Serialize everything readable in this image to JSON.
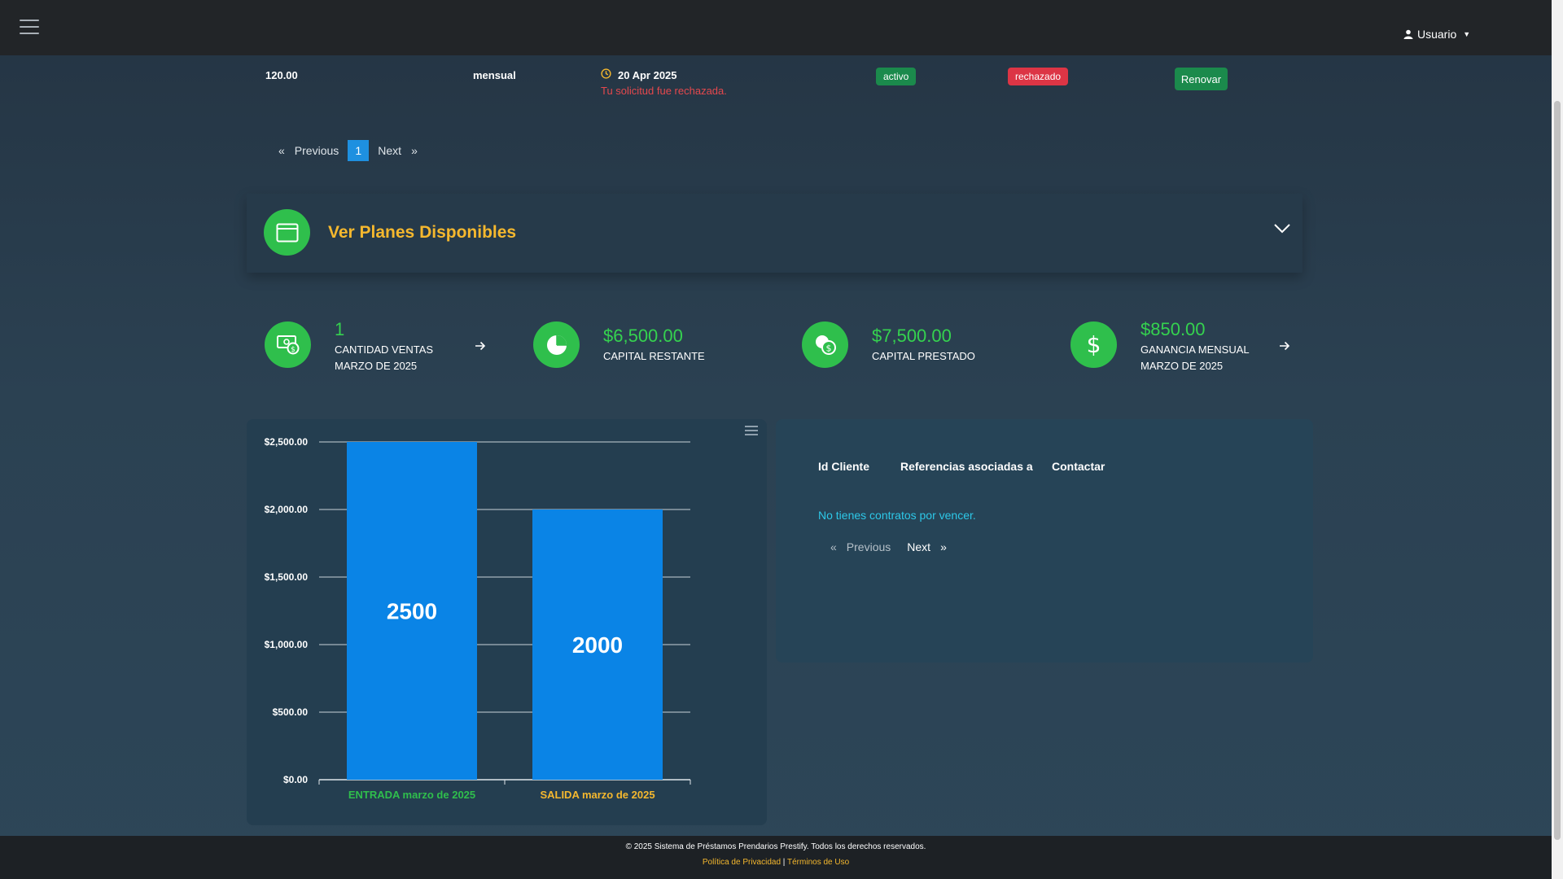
{
  "header": {
    "user_label": "Usuario"
  },
  "last_row": {
    "amount": "120.00",
    "frequency": "mensual",
    "date": "20 Apr 2025",
    "message": "Tu solicitud fue rechazada.",
    "status": "activo",
    "request_status": "rechazado",
    "action": "Renovar"
  },
  "pagination_top": {
    "previous": "Previous",
    "current": "1",
    "next": "Next",
    "prev_glyph": "«",
    "next_glyph": "»"
  },
  "plans": {
    "title": "Ver Planes Disponibles"
  },
  "stats": [
    {
      "value": "1",
      "label": "CANTIDAD VENTAS MARZO DE 2025",
      "icon": "money-icon"
    },
    {
      "value": "$6,500.00",
      "label": "CAPITAL RESTANTE",
      "icon": "pie-chart-icon"
    },
    {
      "value": "$7,500.00",
      "label": "CAPITAL PRESTADO",
      "icon": "coins-icon"
    },
    {
      "value": "$850.00",
      "label": "GANANCIA MENSUAL MARZO DE 2025",
      "icon": "dollar-icon"
    }
  ],
  "chart_data": {
    "type": "bar",
    "categories": [
      "ENTRADA marzo de 2025",
      "SALIDA marzo de 2025"
    ],
    "values": [
      2500,
      2000
    ],
    "data_labels": [
      "2500",
      "2000"
    ],
    "category_colors": [
      "#2fbf4c",
      "#f5b82e"
    ],
    "bar_color": "#0a84e6",
    "yticks": [
      "$0.00",
      "$500.00",
      "$1,000.00",
      "$1,500.00",
      "$2,000.00",
      "$2,500.00"
    ],
    "ylim": [
      0,
      2500
    ],
    "grid": true
  },
  "contracts": {
    "headers": [
      "Id Cliente",
      "Referencias asociadas a",
      "Contactar"
    ],
    "empty": "No tienes contratos por vencer.",
    "previous": "Previous",
    "next": "Next",
    "prev_glyph": "«",
    "next_glyph": "»"
  },
  "footer": {
    "copyright": "© 2025 Sistema de Préstamos Prendarios Prestify. Todos los derechos reservados.",
    "privacy": "Política de Privacidad",
    "separator": "|",
    "terms": "Términos de Uso"
  }
}
